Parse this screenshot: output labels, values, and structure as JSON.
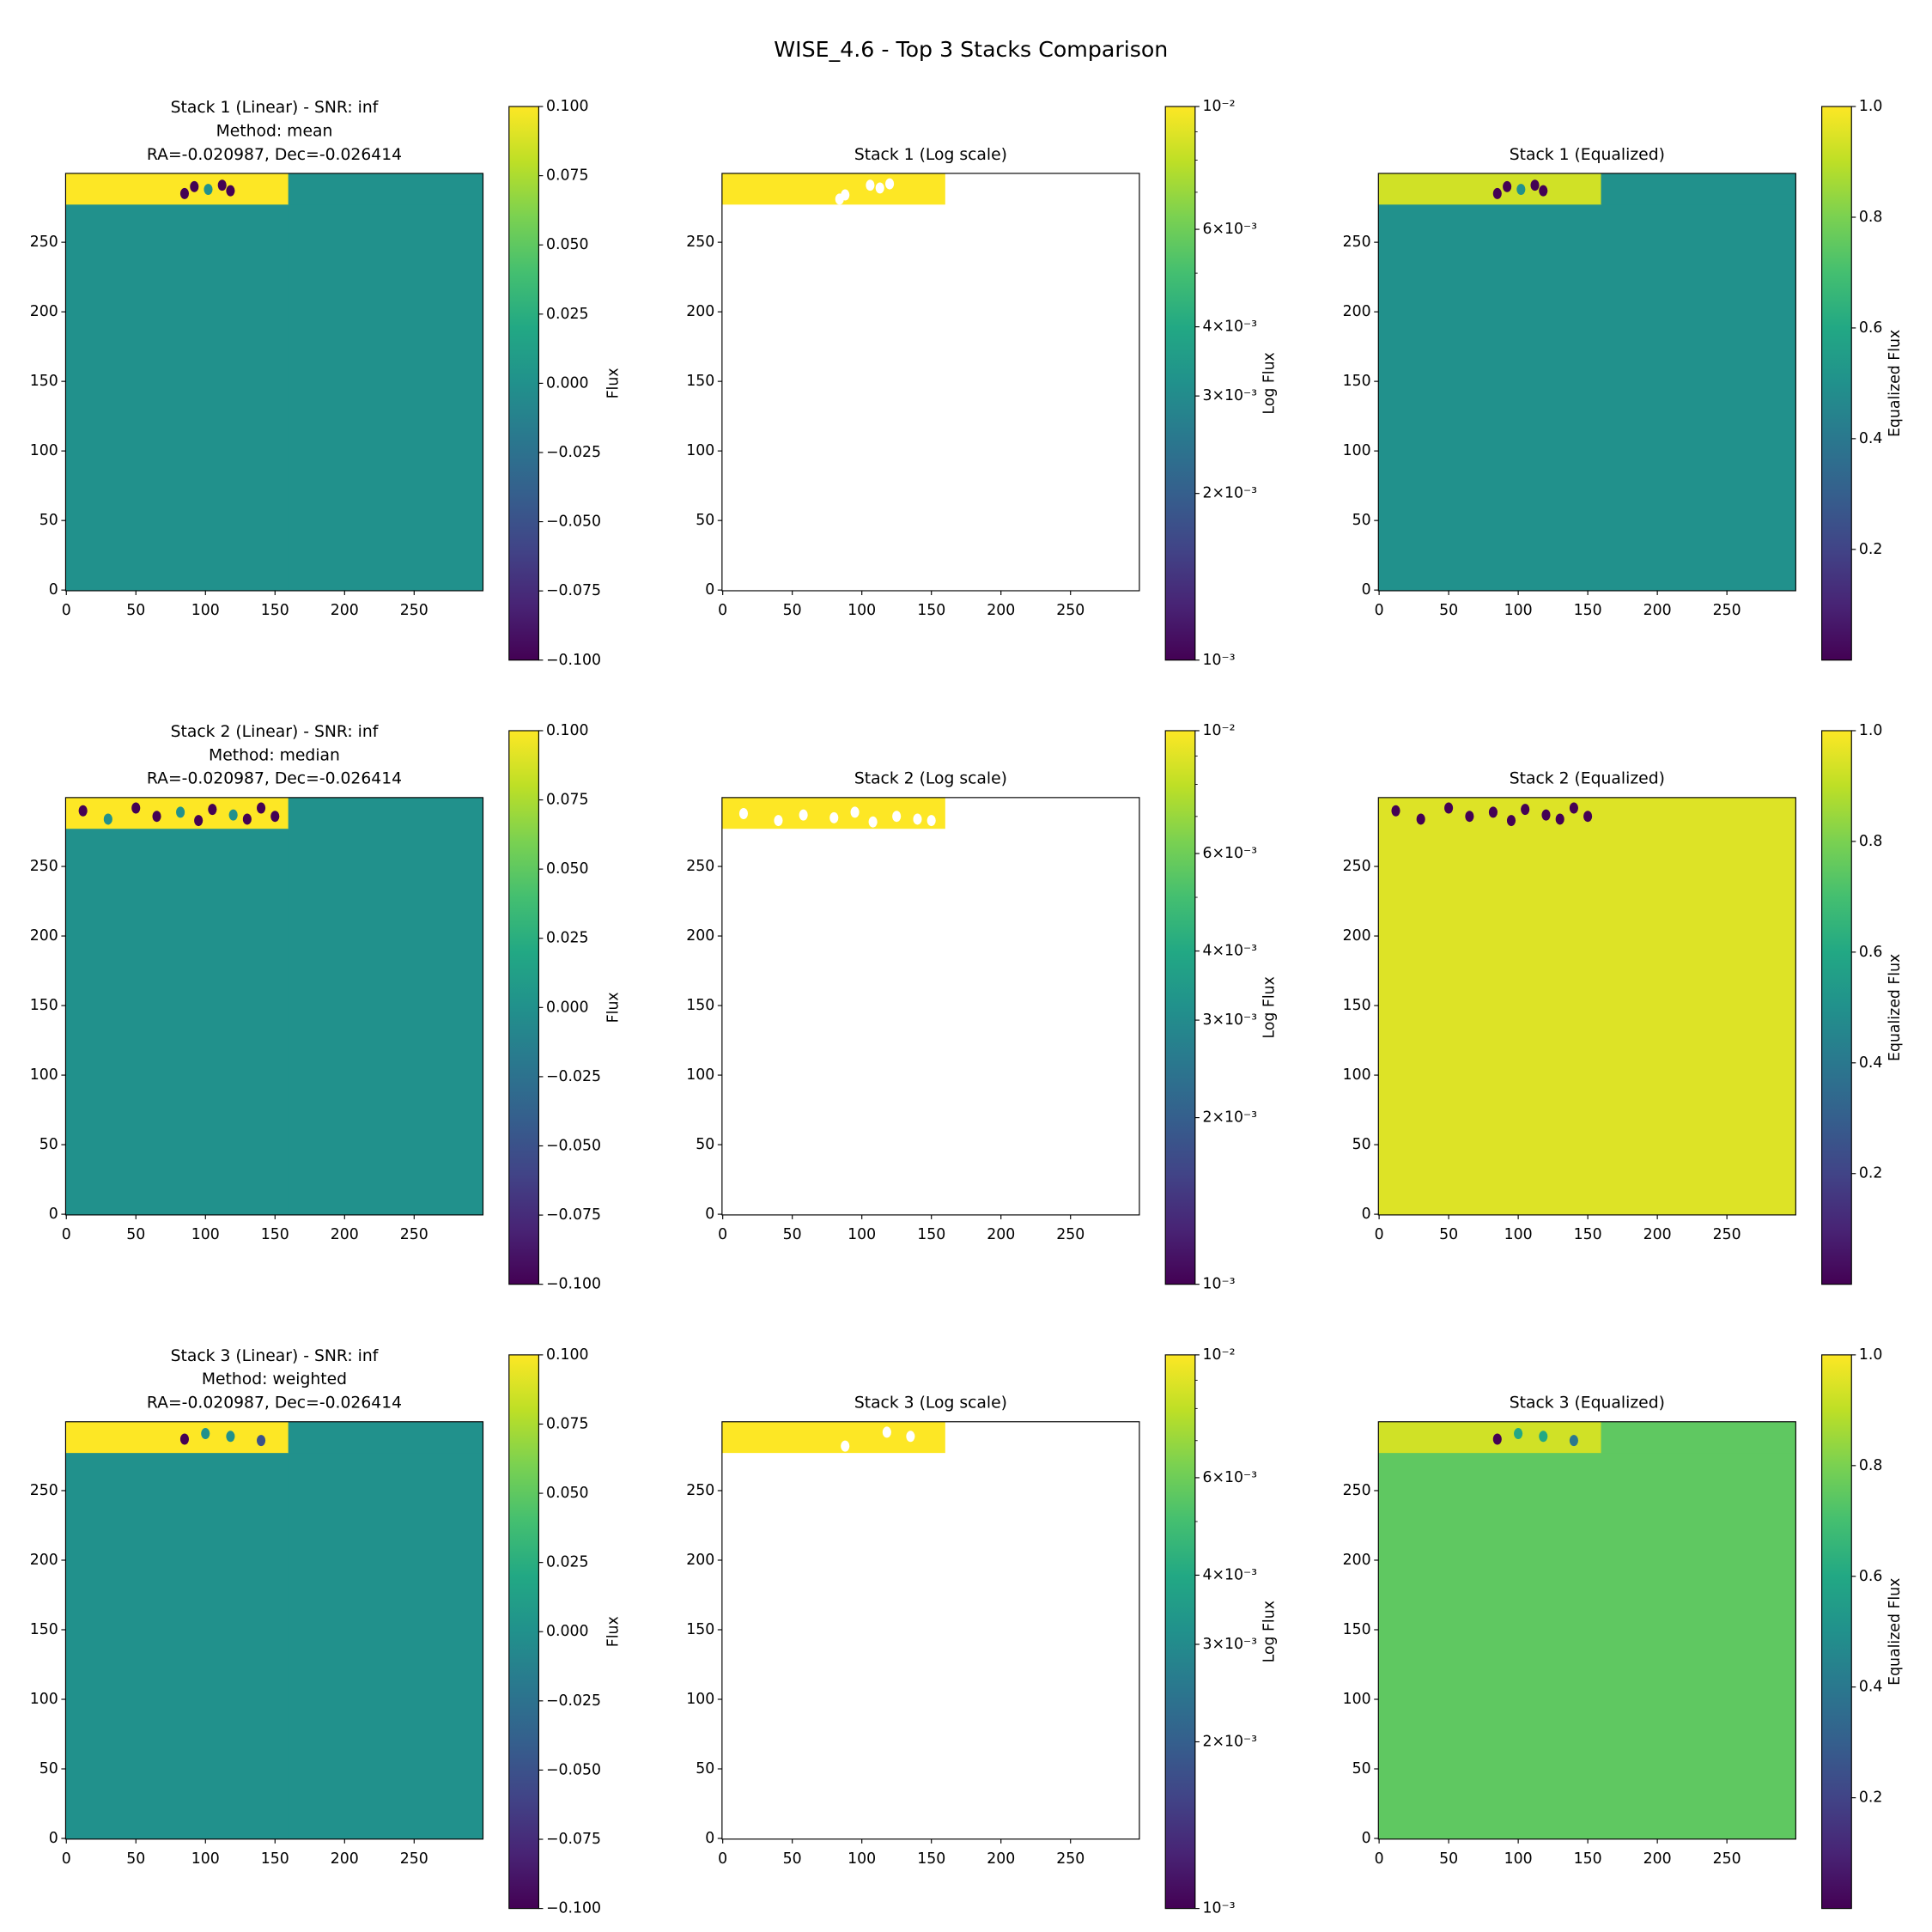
{
  "title": "WISE_4.6 - Top 3 Stacks Comparison",
  "chart_data": [
    {
      "type": "image",
      "title": [
        "Stack 1 (Linear) - SNR: inf",
        "Method: mean",
        "RA=-0.020987, Dec=-0.026414"
      ],
      "xlim": [
        -0.5,
        299.5
      ],
      "ylim": [
        -0.5,
        299.5
      ],
      "xticks": [
        0,
        50,
        100,
        150,
        200,
        250
      ],
      "yticks": [
        0,
        50,
        100,
        150,
        200,
        250
      ],
      "x": [
        -0.5,
        159.5,
        299.5
      ],
      "y": [
        -0.5,
        277.5,
        299.5
      ],
      "values": [
        [
          0,
          0
        ],
        [
          0.1,
          0
        ]
      ],
      "spots": {
        "x": [
          85,
          92,
          102,
          112,
          118
        ],
        "y": [
          285,
          290,
          288,
          291,
          287
        ],
        "values": [
          -0.1,
          -0.1,
          0,
          -0.1,
          -0.1
        ]
      },
      "colormap": "viridis",
      "log": false,
      "clim": [
        -0.1,
        0.1
      ],
      "cticks": [
        {
          "value": -0.1,
          "label": "−0.100"
        },
        {
          "value": -0.075,
          "label": "−0.075"
        },
        {
          "value": -0.05,
          "label": "−0.050"
        },
        {
          "value": -0.025,
          "label": "−0.025"
        },
        {
          "value": 0,
          "label": "0.000"
        },
        {
          "value": 0.025,
          "label": "0.025"
        },
        {
          "value": 0.05,
          "label": "0.050"
        },
        {
          "value": 0.075,
          "label": "0.075"
        },
        {
          "value": 0.1,
          "label": "0.100"
        }
      ],
      "clabel": "Flux"
    },
    {
      "type": "image",
      "title": [
        "Stack 1 (Log scale)"
      ],
      "xlim": [
        -0.5,
        299.5
      ],
      "ylim": [
        -0.5,
        299.5
      ],
      "xticks": [
        0,
        50,
        100,
        150,
        200,
        250
      ],
      "yticks": [
        0,
        50,
        100,
        150,
        200,
        250
      ],
      "x": [
        -0.5,
        159.5,
        299.5
      ],
      "y": [
        -0.5,
        277.5,
        299.5
      ],
      "values": [
        [
          null,
          null
        ],
        [
          0.01,
          null
        ]
      ],
      "spots": {
        "x": [
          84,
          88,
          106,
          113,
          120
        ],
        "y": [
          281,
          284,
          291,
          289,
          292
        ],
        "values": [
          null,
          null,
          null,
          null,
          null
        ]
      },
      "colormap": "viridis",
      "log": true,
      "clim": [
        0.001,
        0.01
      ],
      "cticks": [
        {
          "value": 0.001,
          "label": "10⁻³"
        },
        {
          "value": 0.002,
          "label": "2×10⁻³"
        },
        {
          "value": 0.003,
          "label": "3×10⁻³"
        },
        {
          "value": 0.004,
          "label": "4×10⁻³"
        },
        {
          "value": 0.006,
          "label": "6×10⁻³"
        },
        {
          "value": 0.01,
          "label": "10⁻²"
        }
      ],
      "cminor": [
        0.005,
        0.007,
        0.008,
        0.009
      ],
      "clabel": "Log Flux"
    },
    {
      "type": "image",
      "title": [
        "Stack 1 (Equalized)"
      ],
      "xlim": [
        -0.5,
        299.5
      ],
      "ylim": [
        -0.5,
        299.5
      ],
      "xticks": [
        0,
        50,
        100,
        150,
        200,
        250
      ],
      "yticks": [
        0,
        50,
        100,
        150,
        200,
        250
      ],
      "x": [
        -0.5,
        159.5,
        299.5
      ],
      "y": [
        -0.5,
        277.5,
        299.5
      ],
      "values": [
        [
          0.5,
          0.5
        ],
        [
          0.93,
          0.5
        ]
      ],
      "spots": {
        "x": [
          85,
          92,
          102,
          112,
          118
        ],
        "y": [
          285,
          290,
          288,
          291,
          287
        ],
        "values": [
          0,
          0,
          0.5,
          0,
          0
        ]
      },
      "colormap": "viridis",
      "log": false,
      "clim": [
        0,
        1
      ],
      "cticks": [
        0.2,
        0.4,
        0.6,
        0.8,
        {
          "value": 1,
          "label": "1.0"
        }
      ],
      "clabel": "Equalized Flux"
    },
    {
      "type": "image",
      "title": [
        "Stack 2 (Linear) - SNR: inf",
        "Method: median",
        "RA=-0.020987, Dec=-0.026414"
      ],
      "xlim": [
        -0.5,
        299.5
      ],
      "ylim": [
        -0.5,
        299.5
      ],
      "xticks": [
        0,
        50,
        100,
        150,
        200,
        250
      ],
      "yticks": [
        0,
        50,
        100,
        150,
        200,
        250
      ],
      "x": [
        -0.5,
        159.5,
        299.5
      ],
      "y": [
        -0.5,
        277.5,
        299.5
      ],
      "values": [
        [
          0,
          0
        ],
        [
          0.1,
          0
        ]
      ],
      "spots": {
        "x": [
          12,
          30,
          50,
          65,
          82,
          95,
          105,
          120,
          130,
          140,
          150
        ],
        "y": [
          290,
          284,
          292,
          286,
          289,
          283,
          291,
          287,
          284,
          292,
          286
        ],
        "values": [
          -0.1,
          0,
          -0.1,
          -0.1,
          0,
          -0.1,
          -0.1,
          0,
          -0.1,
          -0.1,
          -0.1
        ]
      },
      "colormap": "viridis",
      "log": false,
      "clim": [
        -0.1,
        0.1
      ],
      "cticks": [
        {
          "value": -0.1,
          "label": "−0.100"
        },
        {
          "value": -0.075,
          "label": "−0.075"
        },
        {
          "value": -0.05,
          "label": "−0.050"
        },
        {
          "value": -0.025,
          "label": "−0.025"
        },
        {
          "value": 0,
          "label": "0.000"
        },
        {
          "value": 0.025,
          "label": "0.025"
        },
        {
          "value": 0.05,
          "label": "0.050"
        },
        {
          "value": 0.075,
          "label": "0.075"
        },
        {
          "value": 0.1,
          "label": "0.100"
        }
      ],
      "clabel": "Flux"
    },
    {
      "type": "image",
      "title": [
        "Stack 2 (Log scale)"
      ],
      "xlim": [
        -0.5,
        299.5
      ],
      "ylim": [
        -0.5,
        299.5
      ],
      "xticks": [
        0,
        50,
        100,
        150,
        200,
        250
      ],
      "yticks": [
        0,
        50,
        100,
        150,
        200,
        250
      ],
      "x": [
        -0.5,
        159.5,
        299.5
      ],
      "y": [
        -0.5,
        277.5,
        299.5
      ],
      "values": [
        [
          null,
          null
        ],
        [
          0.01,
          null
        ]
      ],
      "spots": {
        "x": [
          15,
          40,
          58,
          80,
          95,
          108,
          125,
          140,
          150
        ],
        "y": [
          288,
          283,
          287,
          285,
          289,
          282,
          286,
          284,
          283
        ],
        "values": [
          null,
          null,
          null,
          null,
          null,
          null,
          null,
          null,
          null
        ]
      },
      "colormap": "viridis",
      "log": true,
      "clim": [
        0.001,
        0.01
      ],
      "cticks": [
        {
          "value": 0.001,
          "label": "10⁻³"
        },
        {
          "value": 0.002,
          "label": "2×10⁻³"
        },
        {
          "value": 0.003,
          "label": "3×10⁻³"
        },
        {
          "value": 0.004,
          "label": "4×10⁻³"
        },
        {
          "value": 0.006,
          "label": "6×10⁻³"
        },
        {
          "value": 0.01,
          "label": "10⁻²"
        }
      ],
      "cminor": [
        0.005,
        0.007,
        0.008,
        0.009
      ],
      "clabel": "Log Flux"
    },
    {
      "type": "image",
      "title": [
        "Stack 2 (Equalized)"
      ],
      "xlim": [
        -0.5,
        299.5
      ],
      "ylim": [
        -0.5,
        299.5
      ],
      "xticks": [
        0,
        50,
        100,
        150,
        200,
        250
      ],
      "yticks": [
        0,
        50,
        100,
        150,
        200,
        250
      ],
      "x": [
        -0.5,
        159.5,
        299.5
      ],
      "y": [
        -0.5,
        277.5,
        299.5
      ],
      "values": [
        [
          0.95,
          0.95
        ],
        [
          0.95,
          0.95
        ]
      ],
      "spots": {
        "x": [
          12,
          30,
          50,
          65,
          82,
          95,
          105,
          120,
          130,
          140,
          150
        ],
        "y": [
          290,
          284,
          292,
          286,
          289,
          283,
          291,
          287,
          284,
          292,
          286
        ],
        "values": [
          0,
          0,
          0,
          0,
          0,
          0,
          0,
          0,
          0,
          0,
          0
        ]
      },
      "colormap": "viridis",
      "log": false,
      "clim": [
        0,
        1
      ],
      "cticks": [
        0.2,
        0.4,
        0.6,
        0.8,
        {
          "value": 1,
          "label": "1.0"
        }
      ],
      "clabel": "Equalized Flux"
    },
    {
      "type": "image",
      "title": [
        "Stack 3 (Linear) - SNR: inf",
        "Method: weighted",
        "RA=-0.020987, Dec=-0.026414"
      ],
      "xlim": [
        -0.5,
        299.5
      ],
      "ylim": [
        -0.5,
        299.5
      ],
      "xticks": [
        0,
        50,
        100,
        150,
        200,
        250
      ],
      "yticks": [
        0,
        50,
        100,
        150,
        200,
        250
      ],
      "x": [
        -0.5,
        159.5,
        299.5
      ],
      "y": [
        -0.5,
        277.5,
        299.5
      ],
      "values": [
        [
          0,
          0
        ],
        [
          0.1,
          0
        ]
      ],
      "spots": {
        "x": [
          85,
          100,
          118,
          140
        ],
        "y": [
          287,
          291,
          289,
          286
        ],
        "values": [
          -0.1,
          0,
          0,
          -0.05
        ]
      },
      "colormap": "viridis",
      "log": false,
      "clim": [
        -0.1,
        0.1
      ],
      "cticks": [
        {
          "value": -0.1,
          "label": "−0.100"
        },
        {
          "value": -0.075,
          "label": "−0.075"
        },
        {
          "value": -0.05,
          "label": "−0.050"
        },
        {
          "value": -0.025,
          "label": "−0.025"
        },
        {
          "value": 0,
          "label": "0.000"
        },
        {
          "value": 0.025,
          "label": "0.025"
        },
        {
          "value": 0.05,
          "label": "0.050"
        },
        {
          "value": 0.075,
          "label": "0.075"
        },
        {
          "value": 0.1,
          "label": "0.100"
        }
      ],
      "clabel": "Flux"
    },
    {
      "type": "image",
      "title": [
        "Stack 3 (Log scale)"
      ],
      "xlim": [
        -0.5,
        299.5
      ],
      "ylim": [
        -0.5,
        299.5
      ],
      "xticks": [
        0,
        50,
        100,
        150,
        200,
        250
      ],
      "yticks": [
        0,
        50,
        100,
        150,
        200,
        250
      ],
      "x": [
        -0.5,
        159.5,
        299.5
      ],
      "y": [
        -0.5,
        277.5,
        299.5
      ],
      "values": [
        [
          null,
          null
        ],
        [
          0.01,
          null
        ]
      ],
      "spots": {
        "x": [
          88,
          118,
          135
        ],
        "y": [
          282,
          292,
          289
        ],
        "values": [
          null,
          null,
          null
        ]
      },
      "colormap": "viridis",
      "log": true,
      "clim": [
        0.001,
        0.01
      ],
      "cticks": [
        {
          "value": 0.001,
          "label": "10⁻³"
        },
        {
          "value": 0.002,
          "label": "2×10⁻³"
        },
        {
          "value": 0.003,
          "label": "3×10⁻³"
        },
        {
          "value": 0.004,
          "label": "4×10⁻³"
        },
        {
          "value": 0.006,
          "label": "6×10⁻³"
        },
        {
          "value": 0.01,
          "label": "10⁻²"
        }
      ],
      "cminor": [
        0.005,
        0.007,
        0.008,
        0.009
      ],
      "clabel": "Log Flux"
    },
    {
      "type": "image",
      "title": [
        "Stack 3 (Equalized)"
      ],
      "xlim": [
        -0.5,
        299.5
      ],
      "ylim": [
        -0.5,
        299.5
      ],
      "xticks": [
        0,
        50,
        100,
        150,
        200,
        250
      ],
      "yticks": [
        0,
        50,
        100,
        150,
        200,
        250
      ],
      "x": [
        -0.5,
        159.5,
        299.5
      ],
      "y": [
        -0.5,
        277.5,
        299.5
      ],
      "values": [
        [
          0.75,
          0.75
        ],
        [
          0.93,
          0.75
        ]
      ],
      "spots": {
        "x": [
          85,
          100,
          118,
          140
        ],
        "y": [
          287,
          291,
          289,
          286
        ],
        "values": [
          0,
          0.6,
          0.6,
          0.4
        ]
      },
      "colormap": "viridis",
      "log": false,
      "clim": [
        0,
        1
      ],
      "cticks": [
        0.2,
        0.4,
        0.6,
        0.8,
        {
          "value": 1,
          "label": "1.0"
        }
      ],
      "clabel": "Equalized Flux"
    }
  ]
}
